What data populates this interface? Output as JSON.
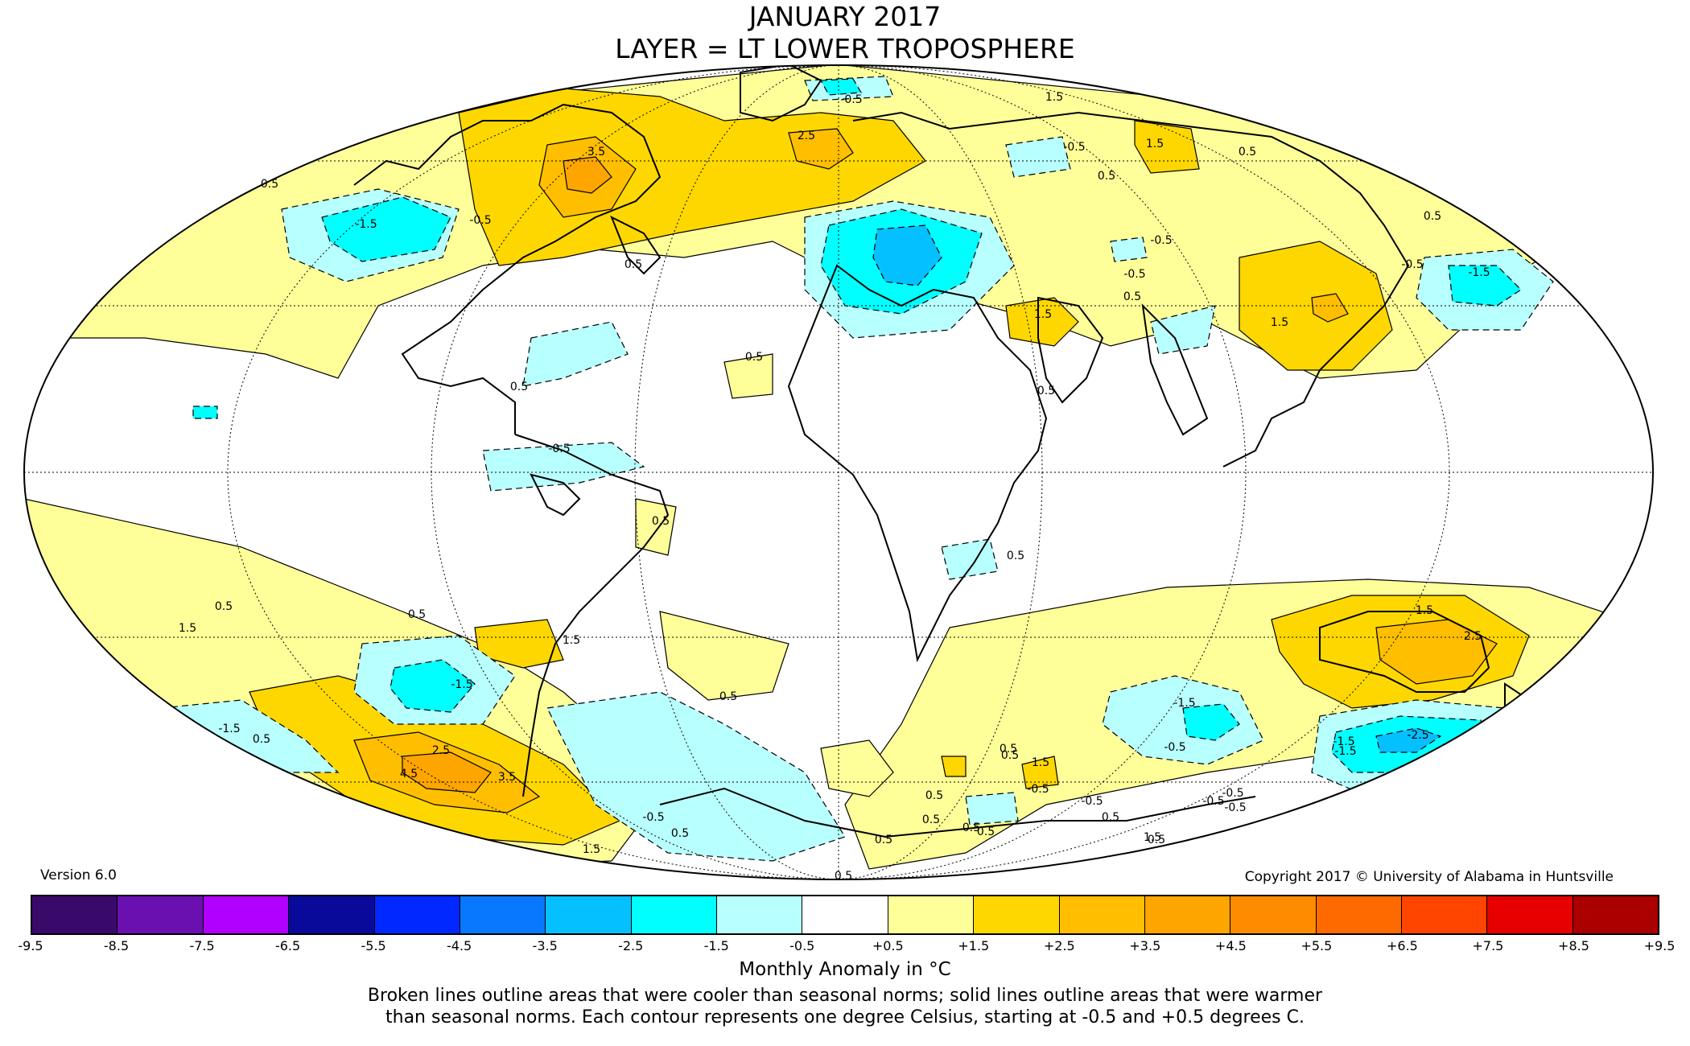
{
  "title": {
    "line1": "JANUARY 2017",
    "line2": "LAYER = LT LOWER TROPOSPHERE"
  },
  "version": "Version 6.0",
  "copyright": "Copyright 2017 © University of Alabama in Huntsville",
  "legend": {
    "title": "Monthly Anomaly in °C",
    "colors": [
      "#3a0a6a",
      "#6a10b0",
      "#b000ff",
      "#0a0a9a",
      "#0028ff",
      "#0878ff",
      "#05c0ff",
      "#00ffff",
      "#b8ffff",
      "#ffffff",
      "#ffff99",
      "#ffd700",
      "#ffbe00",
      "#ffa500",
      "#ff8c00",
      "#ff6a00",
      "#ff4500",
      "#e60000",
      "#aa0000"
    ],
    "ticks": [
      "-9.5",
      "-8.5",
      "-7.5",
      "-6.5",
      "-5.5",
      "-4.5",
      "-3.5",
      "-2.5",
      "-1.5",
      "-0.5",
      "+0.5",
      "+1.5",
      "+2.5",
      "+3.5",
      "+4.5",
      "+5.5",
      "+6.5",
      "+7.5",
      "+8.5",
      "+9.5"
    ]
  },
  "caption": {
    "line1": "Broken lines outline areas that were cooler than seasonal norms; solid lines outline areas that were warmer",
    "line2": "than seasonal norms. Each contour represents one degree Celsius, starting at -0.5 and +0.5 degrees C."
  },
  "map": {
    "projection": "Mollweide",
    "fill_colors": {
      "ocean": "#ffffff",
      "warm_05": "#ffff99",
      "warm_15": "#ffd700",
      "warm_25": "#ffbe00",
      "warm_35": "#ffa500",
      "cool_05": "#b8ffff",
      "cool_15": "#00ffff",
      "cool_25": "#05c0ff"
    },
    "contour_labels": {
      "l01": "-0.5",
      "l02": "0.5",
      "l03": "1.5",
      "l04": "-0.5",
      "l05": "0.5",
      "l06": "2.5",
      "l07": "3.5",
      "l08": "-1.5",
      "l09": "-0.5",
      "l10": "0.5",
      "l11": "-0.5",
      "l12": "0.5",
      "l13": "1.5",
      "l14": "0.5",
      "l15": "-0.5",
      "l16": "-1.5",
      "l17": "1.5",
      "l18": "-0.5",
      "l19": "0.5",
      "l20": "0.5",
      "l21": "0.5",
      "l22": "0.5",
      "l23": "-0.5",
      "l24": "0.5",
      "l25": "0.5",
      "l26": "1.5",
      "l27": "-1.5",
      "l28": "0.5",
      "l29": "0.5",
      "l30": "-1.5",
      "l31": "0.5",
      "l32": "1.5",
      "l33": "1.5",
      "l34": "0.5",
      "l35": "0.5",
      "l36": "2.5",
      "l37": "-1.5",
      "l38": "-2.5",
      "l39": "-0.5",
      "l40": "-1.5",
      "l41": "-0.5",
      "l42": "0.5",
      "l43": "2.5",
      "l44": "4.5",
      "l45": "3.5",
      "l46": "0.5",
      "l47": "1.5",
      "l48": "-0.5",
      "l49": "0.5",
      "l50": "0.5",
      "l51": "0.5",
      "l52": "1.5",
      "l53": "0.5",
      "l54": "-0.5",
      "l55": "1.5",
      "l56": "-0.5",
      "l57": "0.5",
      "l58": "-0.5",
      "l59": "0.5",
      "l60": "-0.5",
      "l61": "-1.5",
      "l62": "0.5",
      "l63": "0.5",
      "l64": "1.5"
    }
  }
}
